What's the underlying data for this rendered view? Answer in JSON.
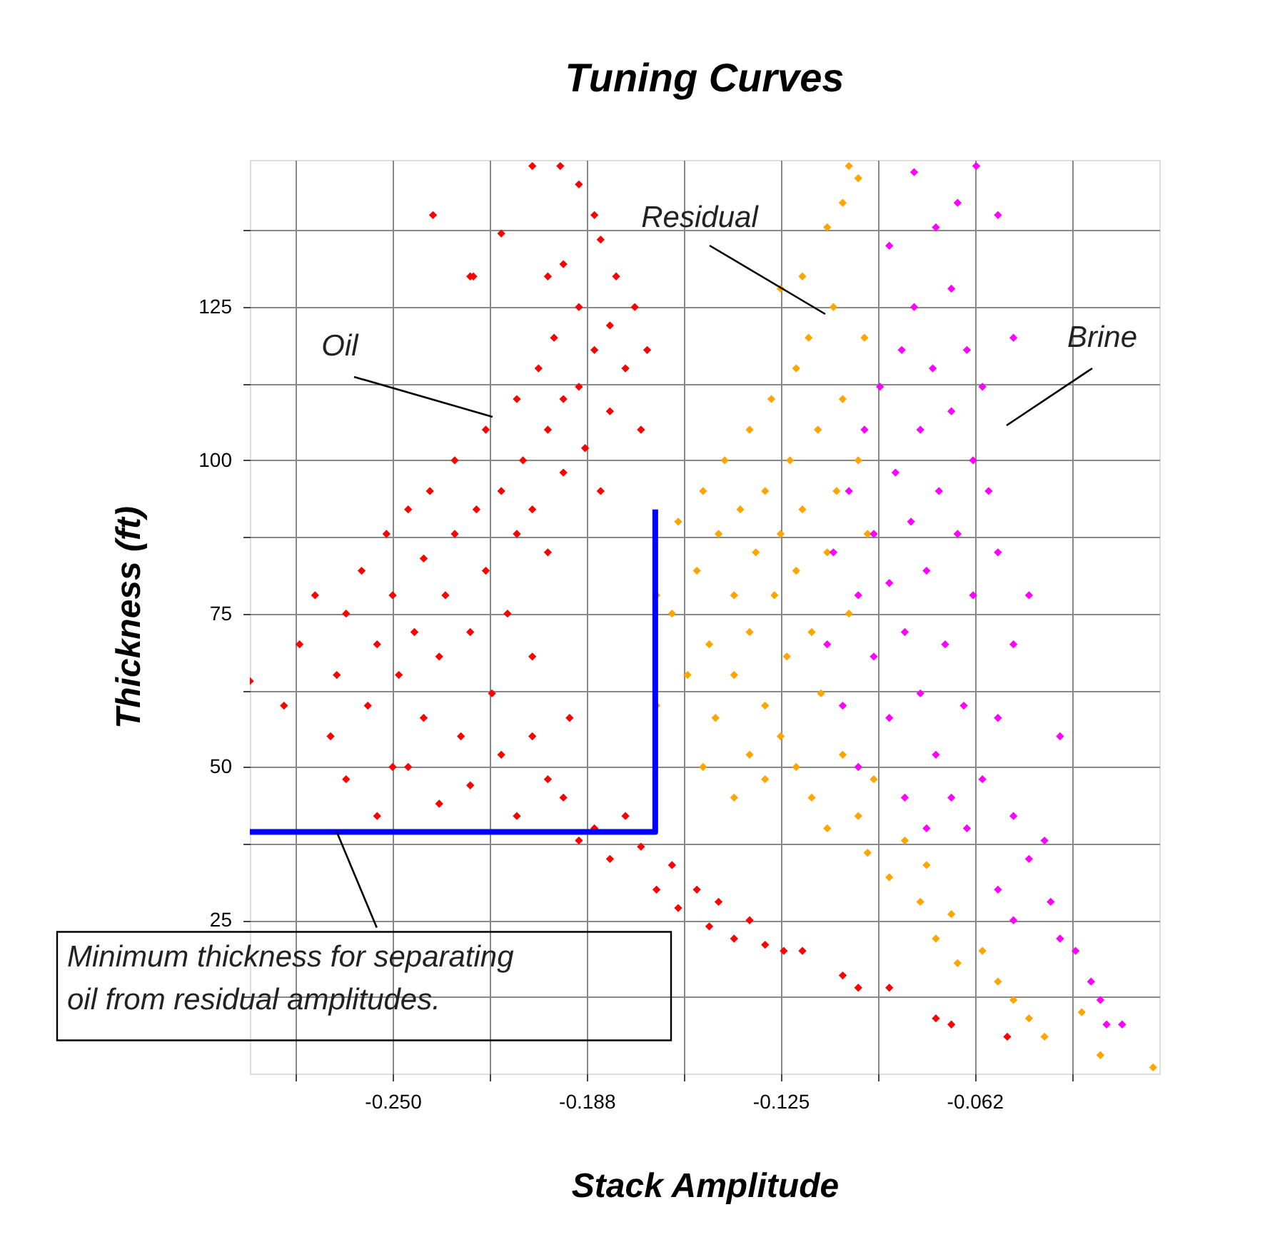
{
  "chart_data": {
    "type": "scatter",
    "title": "Tuning Curves",
    "xlabel": "Stack Amplitude",
    "ylabel": "Thickness (ft)",
    "xlim": [
      -0.296,
      -0.003
    ],
    "ylim": [
      0,
      149
    ],
    "xticks": [
      {
        "value": -0.28125,
        "label": null
      },
      {
        "value": -0.25,
        "label": "-0.250"
      },
      {
        "value": -0.21875,
        "label": null
      },
      {
        "value": -0.1875,
        "label": "-0.188"
      },
      {
        "value": -0.15625,
        "label": null
      },
      {
        "value": -0.125,
        "label": "-0.125"
      },
      {
        "value": -0.09375,
        "label": null
      },
      {
        "value": -0.0625,
        "label": "-0.062"
      },
      {
        "value": -0.03125,
        "label": null
      }
    ],
    "yticks": [
      {
        "value": 12.5,
        "label": null
      },
      25,
      {
        "value": 37.5,
        "label": null
      },
      50,
      {
        "value": 62.5,
        "label": null
      },
      75,
      {
        "value": 87.5,
        "label": null
      },
      100,
      {
        "value": 112.5,
        "label": null
      },
      125,
      {
        "value": 137.5,
        "label": null
      }
    ],
    "grid": true,
    "marker": "diamond",
    "series": [
      {
        "color": "#ff0000",
        "x": [
          -0.285,
          -0.28,
          -0.275,
          -0.27,
          -0.268,
          -0.265,
          -0.26,
          -0.258,
          -0.255,
          -0.252,
          -0.25,
          -0.25,
          -0.248,
          -0.245,
          -0.243,
          -0.24,
          -0.24,
          -0.238,
          -0.235,
          -0.233,
          -0.23,
          -0.23,
          -0.228,
          -0.225,
          -0.223,
          -0.22,
          -0.22,
          -0.218,
          -0.215,
          -0.213,
          -0.21,
          -0.21,
          -0.208,
          -0.205,
          -0.205,
          -0.203,
          -0.2,
          -0.2,
          -0.198,
          -0.195,
          -0.195,
          -0.193,
          -0.19,
          -0.19,
          -0.188,
          -0.185,
          -0.183,
          -0.18,
          -0.18,
          -0.178,
          -0.175,
          -0.172,
          -0.17,
          -0.168,
          -0.265,
          -0.255,
          -0.245,
          -0.235,
          -0.225,
          -0.215,
          -0.21,
          -0.205,
          -0.2,
          -0.195,
          -0.19,
          -0.185,
          -0.18,
          -0.175,
          -0.17,
          -0.165,
          -0.16,
          -0.158,
          -0.152,
          -0.148,
          -0.145,
          -0.14,
          -0.135,
          -0.13,
          -0.124,
          -0.118,
          -0.105,
          -0.1,
          -0.09,
          -0.075,
          -0.07,
          -0.052,
          -0.225,
          -0.215,
          -0.205,
          -0.196,
          -0.19,
          -0.185,
          -0.183,
          -0.2,
          -0.195,
          -0.237,
          -0.224,
          -0.296
        ],
        "values": [
          60,
          70,
          78,
          55,
          65,
          75,
          82,
          60,
          70,
          88,
          50,
          78,
          65,
          92,
          72,
          58,
          84,
          95,
          68,
          78,
          88,
          100,
          55,
          72,
          92,
          82,
          105,
          62,
          95,
          75,
          88,
          110,
          100,
          68,
          92,
          115,
          85,
          105,
          120,
          98,
          110,
          58,
          112,
          125,
          102,
          118,
          95,
          122,
          108,
          130,
          115,
          125,
          105,
          118,
          48,
          42,
          50,
          44,
          47,
          52,
          42,
          55,
          48,
          45,
          38,
          40,
          35,
          42,
          37,
          30,
          34,
          27,
          30,
          24,
          28,
          22,
          25,
          21,
          20,
          20,
          16,
          14,
          14,
          9,
          8,
          6,
          130,
          137,
          148,
          148,
          145,
          140,
          136,
          130,
          132,
          140,
          130,
          64
        ]
      },
      {
        "color": "#ffa500",
        "x": [
          -0.16,
          -0.158,
          -0.155,
          -0.152,
          -0.15,
          -0.148,
          -0.146,
          -0.145,
          -0.143,
          -0.14,
          -0.14,
          -0.138,
          -0.135,
          -0.135,
          -0.133,
          -0.13,
          -0.13,
          -0.128,
          -0.127,
          -0.125,
          -0.123,
          -0.122,
          -0.12,
          -0.12,
          -0.118,
          -0.116,
          -0.115,
          -0.113,
          -0.112,
          -0.11,
          -0.108,
          -0.107,
          -0.105,
          -0.103,
          -0.1,
          -0.098,
          -0.097,
          -0.125,
          -0.118,
          -0.11,
          -0.105,
          -0.103,
          -0.1,
          -0.15,
          -0.14,
          -0.135,
          -0.13,
          -0.125,
          -0.12,
          -0.115,
          -0.11,
          -0.105,
          -0.1,
          -0.097,
          -0.095,
          -0.09,
          -0.085,
          -0.08,
          -0.078,
          -0.075,
          -0.07,
          -0.068,
          -0.06,
          -0.055,
          -0.05,
          -0.045,
          -0.04,
          -0.028,
          -0.022,
          -0.005,
          -0.165,
          -0.165
        ],
        "values": [
          75,
          90,
          65,
          82,
          95,
          70,
          58,
          88,
          100,
          78,
          65,
          92,
          105,
          72,
          85,
          60,
          95,
          110,
          78,
          88,
          68,
          100,
          115,
          82,
          92,
          120,
          72,
          105,
          62,
          85,
          125,
          95,
          110,
          75,
          100,
          120,
          88,
          128,
          130,
          138,
          142,
          148,
          146,
          50,
          45,
          52,
          48,
          55,
          50,
          45,
          40,
          52,
          42,
          36,
          48,
          32,
          38,
          28,
          34,
          22,
          26,
          18,
          20,
          15,
          12,
          9,
          6,
          10,
          3,
          1,
          60,
          78
        ]
      },
      {
        "color": "#ff00ff",
        "x": [
          -0.11,
          -0.108,
          -0.105,
          -0.103,
          -0.1,
          -0.1,
          -0.098,
          -0.095,
          -0.095,
          -0.093,
          -0.09,
          -0.09,
          -0.088,
          -0.086,
          -0.085,
          -0.083,
          -0.082,
          -0.08,
          -0.08,
          -0.078,
          -0.076,
          -0.075,
          -0.074,
          -0.072,
          -0.07,
          -0.07,
          -0.068,
          -0.066,
          -0.065,
          -0.063,
          -0.063,
          -0.06,
          -0.058,
          -0.09,
          -0.082,
          -0.075,
          -0.068,
          -0.062,
          -0.055,
          -0.05,
          -0.055,
          -0.05,
          -0.045,
          -0.055,
          -0.06,
          -0.07,
          -0.065,
          -0.05,
          -0.045,
          -0.04,
          -0.055,
          -0.05,
          -0.038,
          -0.035,
          -0.03,
          -0.025,
          -0.022,
          -0.02,
          -0.015,
          -0.085,
          -0.078,
          -0.035
        ],
        "values": [
          70,
          85,
          60,
          95,
          78,
          50,
          105,
          68,
          88,
          112,
          58,
          80,
          98,
          118,
          72,
          90,
          125,
          62,
          105,
          82,
          115,
          52,
          95,
          70,
          108,
          128,
          88,
          60,
          118,
          100,
          78,
          112,
          95,
          135,
          147,
          138,
          142,
          148,
          140,
          120,
          85,
          70,
          78,
          58,
          48,
          45,
          40,
          42,
          35,
          38,
          30,
          25,
          28,
          22,
          20,
          15,
          12,
          8,
          8,
          45,
          40,
          55
        ]
      },
      {
        "type": "line",
        "marker": "none",
        "color": "#0000ff",
        "x": [
          -0.296,
          -0.1654,
          -0.1654
        ],
        "values": [
          39.4,
          39.4,
          92
        ]
      }
    ],
    "annotations": [
      "Oil",
      "Residual",
      "Brine",
      {
        "text": "Minimum thickness for separating\noil from residual amplitudes.",
        "x": -0.268,
        "y": 39.4
      }
    ]
  }
}
